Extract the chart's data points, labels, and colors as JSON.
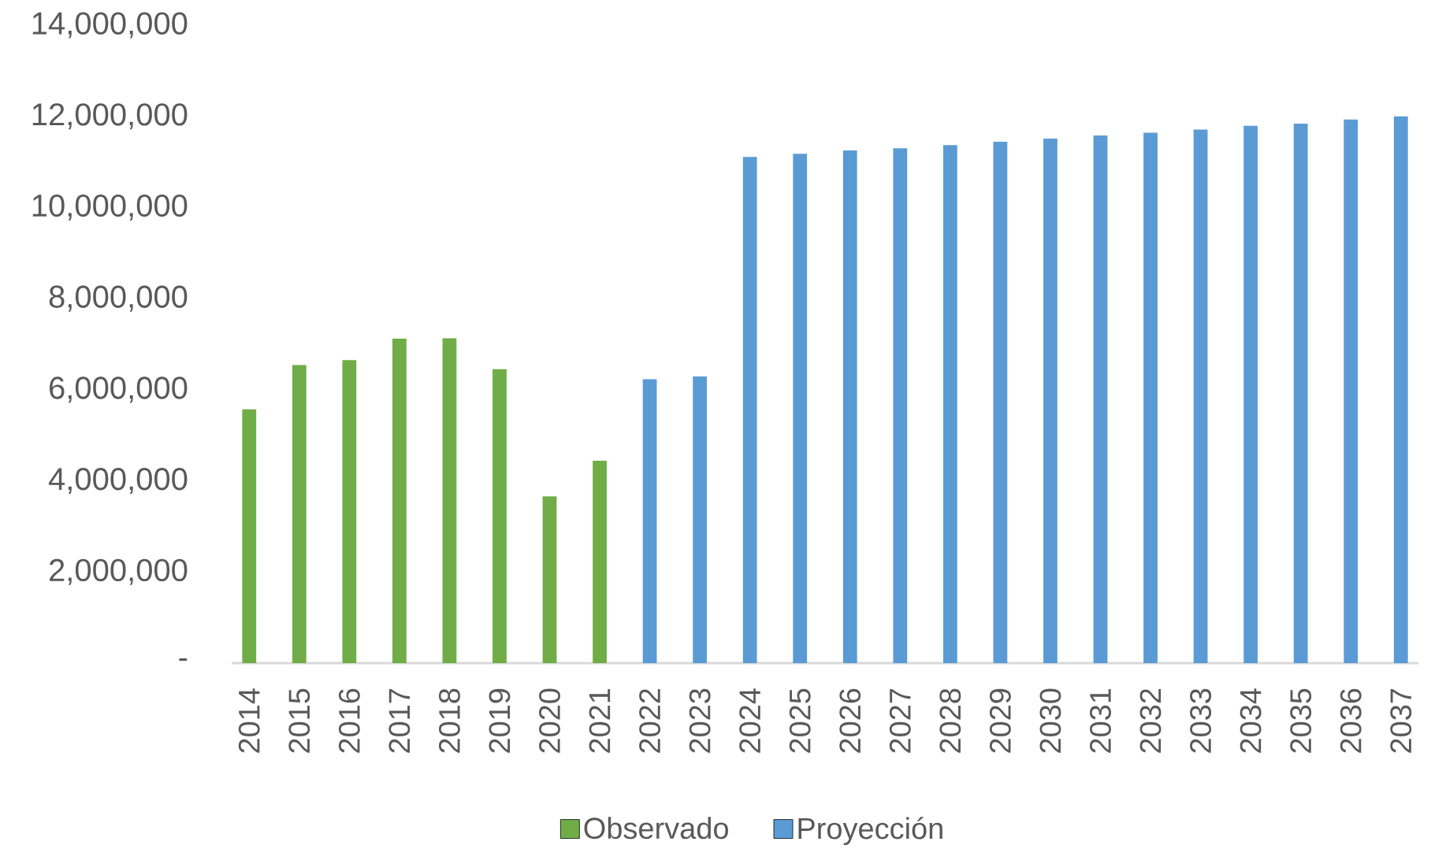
{
  "chart_data": {
    "type": "bar",
    "categories": [
      "2014",
      "2015",
      "2016",
      "2017",
      "2018",
      "2019",
      "2020",
      "2021",
      "2022",
      "2023",
      "2024",
      "2025",
      "2026",
      "2027",
      "2028",
      "2029",
      "2030",
      "2031",
      "2032",
      "2033",
      "2034",
      "2035",
      "2036",
      "2037"
    ],
    "series": [
      {
        "name": "Observado",
        "color": "#70ad47",
        "values": [
          5570000,
          6540000,
          6650000,
          7120000,
          7130000,
          6450000,
          3660000,
          4440000,
          null,
          null,
          null,
          null,
          null,
          null,
          null,
          null,
          null,
          null,
          null,
          null,
          null,
          null,
          null,
          null
        ]
      },
      {
        "name": "Proyección",
        "color": "#5b9bd5",
        "values": [
          null,
          null,
          null,
          null,
          null,
          null,
          null,
          null,
          6230000,
          6290000,
          11110000,
          11180000,
          11250000,
          11300000,
          11370000,
          11440000,
          11510000,
          11580000,
          11640000,
          11710000,
          11790000,
          11840000,
          11930000,
          12000000
        ]
      }
    ],
    "ylim": [
      0,
      14000000
    ],
    "yticks": [
      {
        "value": 0,
        "label": "-"
      },
      {
        "value": 2000000,
        "label": "2,000,000"
      },
      {
        "value": 4000000,
        "label": "4,000,000"
      },
      {
        "value": 6000000,
        "label": "6,000,000"
      },
      {
        "value": 8000000,
        "label": "8,000,000"
      },
      {
        "value": 10000000,
        "label": "10,000,000"
      },
      {
        "value": 12000000,
        "label": "12,000,000"
      },
      {
        "value": 14000000,
        "label": "14,000,000"
      }
    ],
    "legend": "bottom"
  }
}
